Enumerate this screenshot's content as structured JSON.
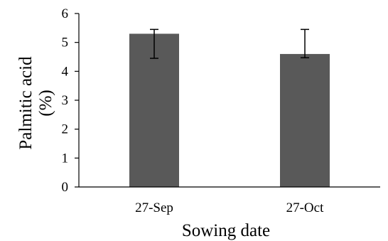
{
  "chart_data": {
    "type": "bar",
    "categories": [
      "27-Sep",
      "27-Oct"
    ],
    "values": [
      5.3,
      4.6
    ],
    "error_bars": [
      {
        "low": 4.45,
        "high": 5.45
      },
      {
        "low": 4.47,
        "high": 5.45
      }
    ],
    "xlabel": "Sowing date",
    "ylabel_lines": [
      "Palmitic acid",
      "(%)"
    ],
    "ylim": [
      0,
      6
    ],
    "yticks": [
      "0",
      "1",
      "2",
      "3",
      "4",
      "5",
      "6"
    ],
    "grid": false,
    "legend": "none",
    "bar_color": "#595959",
    "axis_color": "#000000"
  }
}
